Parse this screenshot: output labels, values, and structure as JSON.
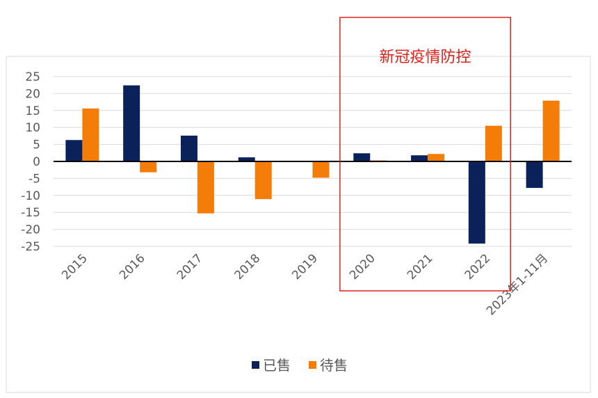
{
  "chart_data": {
    "type": "bar",
    "categories": [
      "2015",
      "2016",
      "2017",
      "2018",
      "2019",
      "2020",
      "2021",
      "2022",
      "2023年1-11月"
    ],
    "series": [
      {
        "name": "已售",
        "color": "#0a2159",
        "values": [
          6.3,
          22.4,
          7.6,
          1.2,
          0,
          2.4,
          1.8,
          -24.2,
          -7.8
        ]
      },
      {
        "name": "待售",
        "color": "#f47d0a",
        "values": [
          15.6,
          -3.2,
          -15.3,
          -11.1,
          -4.8,
          0.3,
          2.2,
          10.5,
          17.9
        ]
      }
    ],
    "ylim": [
      -25,
      25
    ],
    "yticks": [
      25,
      20,
      15,
      10,
      5,
      0,
      -5,
      -10,
      -15,
      -20,
      -25
    ],
    "grid": true,
    "legend_position": "bottom",
    "annotation": {
      "text": "新冠疫情防控",
      "color": "#e0201b",
      "categories": [
        "2020",
        "2021",
        "2022"
      ]
    }
  }
}
